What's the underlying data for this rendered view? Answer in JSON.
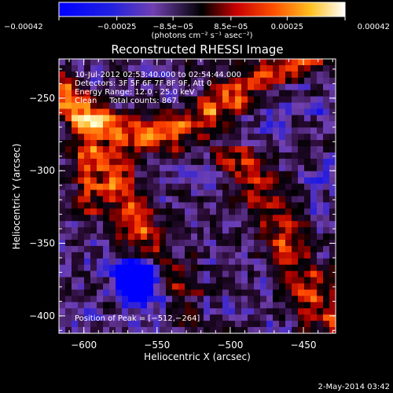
{
  "chart_data": {
    "type": "heatmap",
    "title": "Reconstructed RHESSI Image",
    "xlabel": "Heliocentric X (arcsec)",
    "ylabel": "Heliocentric Y (arcsec)",
    "xlim": [
      -617,
      -428
    ],
    "ylim": [
      -412,
      -223
    ],
    "x_ticks": [
      -600,
      -550,
      -500,
      -450
    ],
    "y_ticks": [
      -400,
      -350,
      -300,
      -250
    ],
    "x_tick_labels": [
      "−600",
      "−550",
      "−500",
      "−450"
    ],
    "y_tick_labels": [
      "−400",
      "−350",
      "−300",
      "−250"
    ],
    "colorbar": {
      "range": [
        -0.00042,
        0.00042
      ],
      "tick_values": [
        -0.00042,
        -0.00025,
        -8.5e-05,
        8.5e-05,
        0.00025,
        0.00042
      ],
      "tick_labels": [
        "−0.00042",
        "−0.00025",
        "−8.5e−05",
        "8.5e−05",
        "0.00025",
        "0.00042"
      ],
      "unit_label": "(photons cm⁻² s⁻¹ asec⁻²)"
    },
    "annotations": [
      "10-Jul-2012 02:53:40.000 to 02:54:44.000",
      "Detectors: 3F 5F 6F 7F 8F 9F, Att 0",
      "Energy Range: 12.0 - 25.0 keV",
      "Clean     Total counts: 867.",
      "Position of Peak = [−512,−264]"
    ],
    "peak_position": [
      -512,
      -264
    ],
    "grid": false
  },
  "footer": {
    "timestamp": "2-May-2014 03:42"
  },
  "colors": {
    "background": "#000000",
    "foreground": "#ffffff",
    "colormap": [
      "#0000ff",
      "#8040a0",
      "#000000",
      "#c80000",
      "#ff6000",
      "#ffff60",
      "#ffffff"
    ]
  }
}
